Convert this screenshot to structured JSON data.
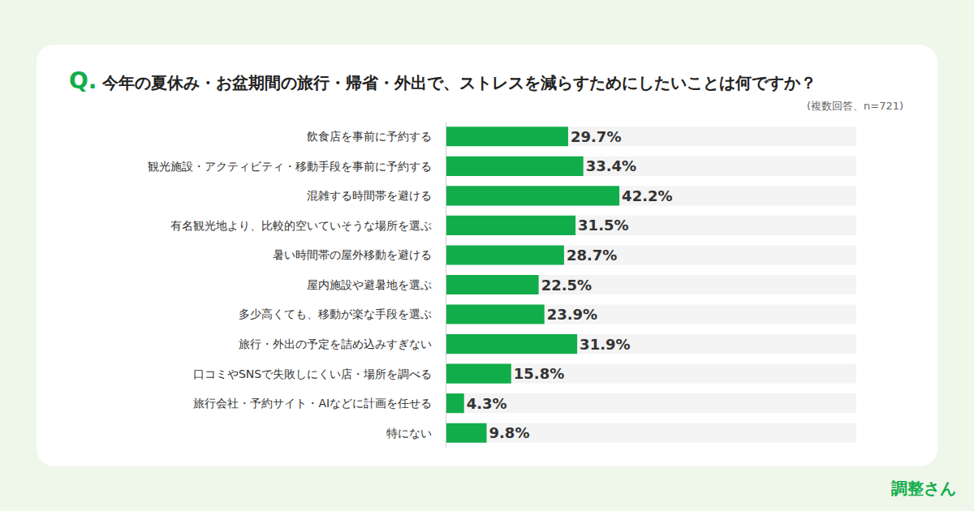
{
  "chart_data": {
    "type": "bar",
    "orientation": "horizontal",
    "title": "Q. 今年の夏休み・お盆期間の旅行・帰省・外出で、ストレスを減らすためにしたいことは何ですか？",
    "subtitle": "(複数回答、n=721)",
    "annotations": [
      "調整さん"
    ],
    "categories": [
      "飲食店を事前に予約する",
      "観光施設・アクティビティ・移動手段を事前に予約する",
      "混雑する時間帯を避ける",
      "有名観光地より、比較的空いていそうな場所を選ぶ",
      "暑い時間帯の屋外移動を避ける",
      "屋内施設や避暑地を選ぶ",
      "多少高くても、移動が楽な手段を選ぶ",
      "旅行・外出の予定を詰め込みすぎない",
      "口コミやSNSで失敗しにくい店・場所を調べる",
      "旅行会社・予約サイト・AIなどに計画を任せる",
      "特にない"
    ],
    "values": [
      29.7,
      33.4,
      42.2,
      31.5,
      28.7,
      22.5,
      23.9,
      31.9,
      15.8,
      4.3,
      9.8
    ],
    "value_labels": [
      "29.7%",
      "33.4%",
      "42.2%",
      "31.5%",
      "28.7%",
      "22.5%",
      "23.9%",
      "31.9%",
      "15.8%",
      "4.3%",
      "9.8%"
    ],
    "color": "#12ad4b",
    "xlim": [
      0,
      100
    ],
    "data_labels": true,
    "tick_labels": "y",
    "grid": false
  }
}
